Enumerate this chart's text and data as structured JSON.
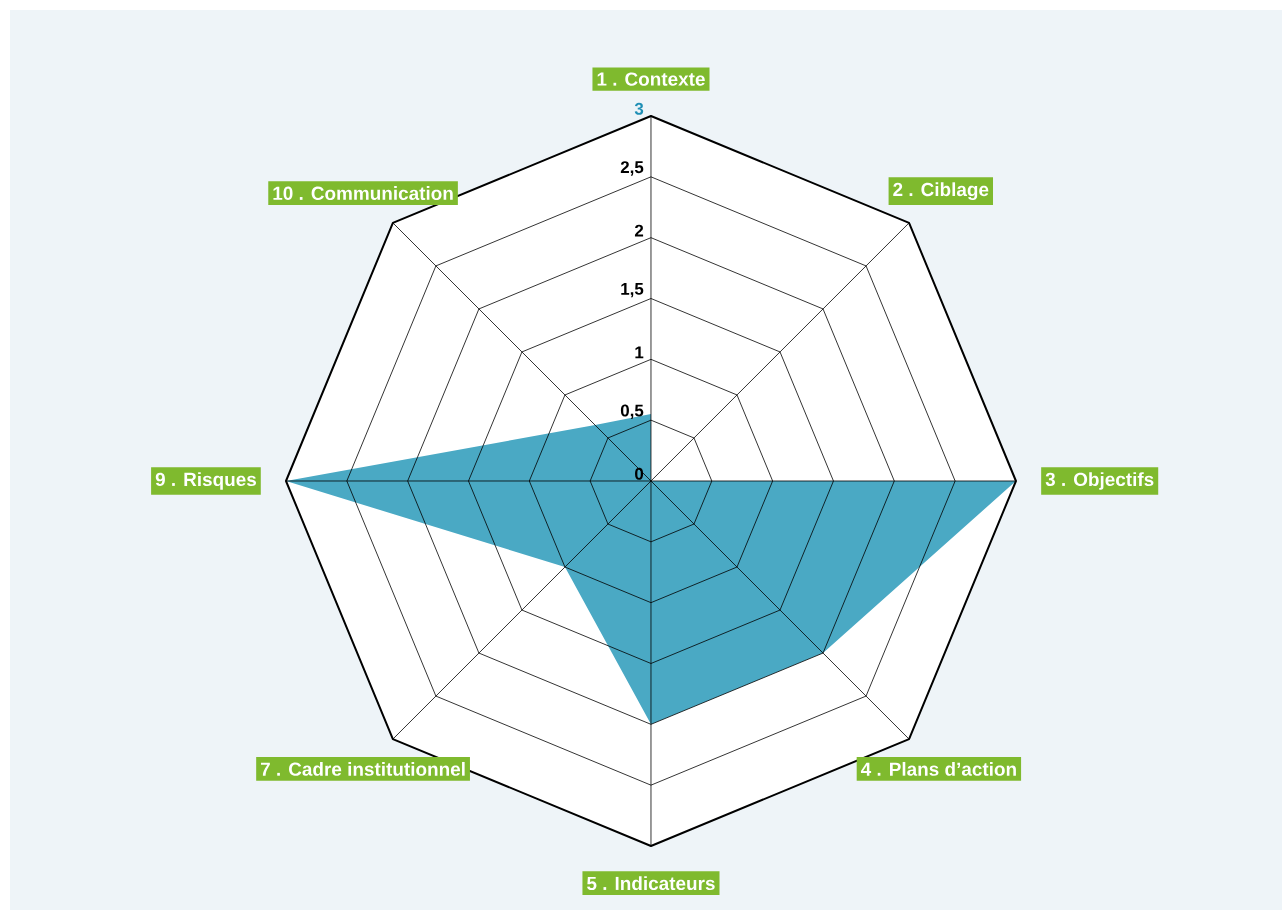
{
  "chart_data": {
    "type": "radar",
    "categories": [
      "1 . Contexte",
      "2 . Ciblage",
      "3 . Objectifs",
      "4 . Plans d’action",
      "5 . Indicateurs",
      "7 . Cadre institutionnel",
      "9 . Risques",
      "10 . Communication"
    ],
    "series": [
      {
        "color": "#4aa9c4",
        "values": [
          0.55,
          0,
          3,
          2,
          2,
          1,
          3,
          0.65
        ]
      }
    ],
    "ylim": [
      0,
      3
    ],
    "yticks": [
      0,
      {
        "value": 0.5,
        "label": "0,5"
      },
      1,
      {
        "value": 1.5,
        "label": "1,5"
      },
      2,
      {
        "value": 2.5,
        "label": "2,5"
      },
      3
    ],
    "grid": true
  }
}
